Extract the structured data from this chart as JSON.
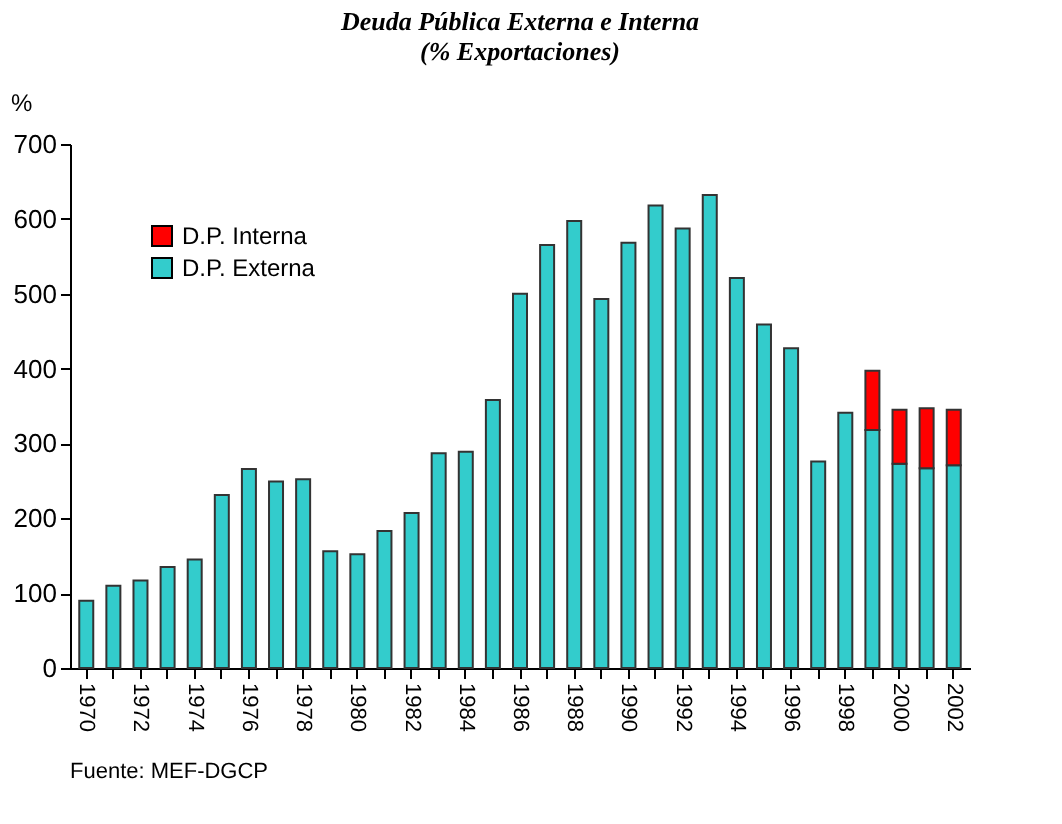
{
  "chart_data": {
    "type": "bar",
    "title": "Deuda Pública Externa e Interna",
    "subtitle": "(% Exportaciones)",
    "ylabel": "%",
    "categories": [
      "1970",
      null,
      "1972",
      null,
      "1974",
      null,
      "1976",
      null,
      "1978",
      null,
      "1980",
      null,
      "1982",
      null,
      "1984",
      null,
      "1986",
      null,
      "1988",
      null,
      "1990",
      null,
      "1992",
      null,
      "1994",
      null,
      "1996",
      null,
      "1998",
      null,
      "2000",
      null,
      "2002"
    ],
    "series": [
      {
        "name": "D.P. Externa",
        "color": "#33cccc",
        "values": [
          90,
          110,
          117,
          135,
          145,
          231,
          266,
          249,
          252,
          156,
          152,
          183,
          207,
          287,
          289,
          358,
          500,
          565,
          597,
          493,
          568,
          618,
          587,
          632,
          521,
          459,
          427,
          276,
          341,
          318,
          273,
          267,
          271
        ]
      },
      {
        "name": "D.P. Interna",
        "color": "#ff0000",
        "values": [
          null,
          null,
          null,
          null,
          null,
          null,
          null,
          null,
          null,
          null,
          null,
          null,
          null,
          null,
          null,
          null,
          null,
          null,
          null,
          null,
          null,
          null,
          null,
          null,
          null,
          null,
          null,
          null,
          null,
          79,
          72,
          80,
          74
        ]
      }
    ],
    "stacked": true,
    "ylim": [
      0,
      700
    ],
    "yticks": [
      0,
      100,
      200,
      300,
      400,
      500,
      600,
      700
    ],
    "grid": false,
    "legend": "top left",
    "annotations": [
      "Fuente: MEF-DGCP"
    ]
  }
}
